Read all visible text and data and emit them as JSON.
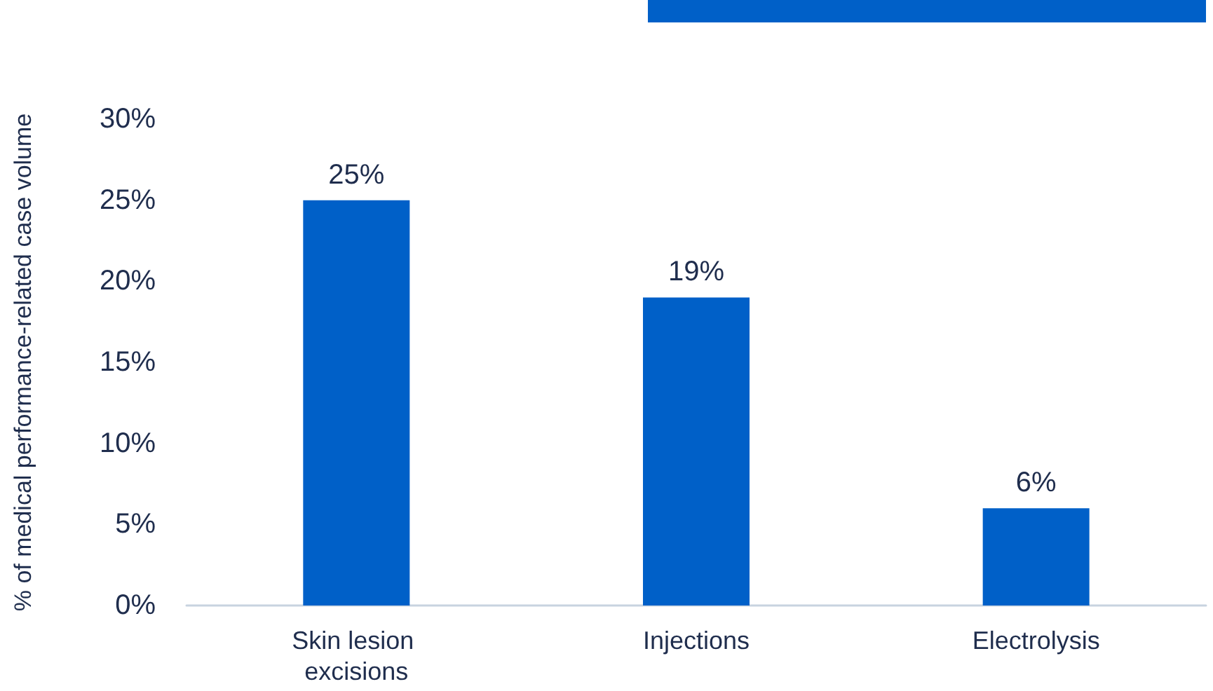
{
  "chart_data": {
    "type": "bar",
    "ylabel": "% of medical performance-related case volume",
    "categories": [
      "Skin lesion excisions",
      "Injections",
      "Electrolysis"
    ],
    "values": [
      25,
      19,
      6
    ],
    "color": "#0060c8",
    "value_labels": [
      "25%",
      "19%",
      "6%"
    ],
    "ylim": [
      0,
      30
    ],
    "yticks": [
      {
        "value": 0,
        "label": "0%"
      },
      {
        "value": 5,
        "label": "5%"
      },
      {
        "value": 10,
        "label": "10%"
      },
      {
        "value": 15,
        "label": "15%"
      },
      {
        "value": 20,
        "label": "20%"
      },
      {
        "value": 25,
        "label": "25%"
      },
      {
        "value": 30,
        "label": "30%"
      }
    ],
    "grid": false
  }
}
